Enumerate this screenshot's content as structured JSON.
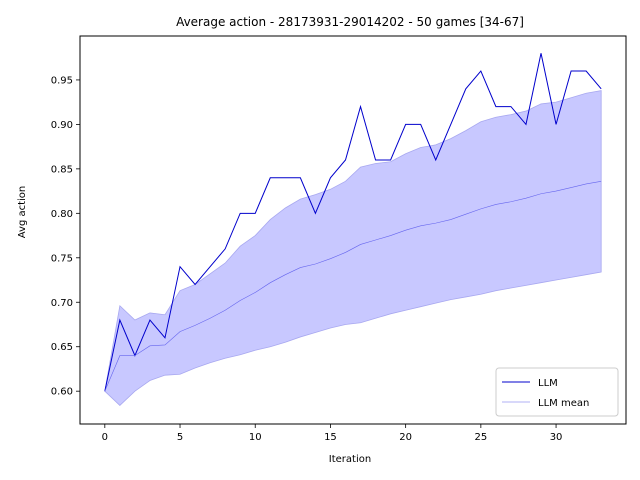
{
  "chart_data": {
    "type": "line",
    "title": "Average action - 28173931-29014202 - 50 games [34-67]",
    "xlabel": "Iteration",
    "ylabel": "Avg action",
    "xlim": [
      -1.65,
      34.65
    ],
    "ylim": [
      0.5631,
      0.9994
    ],
    "xticks": [
      0,
      5,
      10,
      15,
      20,
      25,
      30
    ],
    "xtick_labels": [
      "0",
      "5",
      "10",
      "15",
      "20",
      "25",
      "30"
    ],
    "yticks": [
      0.6,
      0.65,
      0.7,
      0.75,
      0.8,
      0.85,
      0.9,
      0.95
    ],
    "ytick_labels": [
      "0.60",
      "0.65",
      "0.70",
      "0.75",
      "0.80",
      "0.85",
      "0.90",
      "0.95"
    ],
    "grid": false,
    "legend_position": "lower-right",
    "x": [
      0,
      1,
      2,
      3,
      4,
      5,
      6,
      7,
      8,
      9,
      10,
      11,
      12,
      13,
      14,
      15,
      16,
      17,
      18,
      19,
      20,
      21,
      22,
      23,
      24,
      25,
      26,
      27,
      28,
      29,
      30,
      31,
      32,
      33
    ],
    "series": [
      {
        "name": "LLM",
        "color": "#0000cc",
        "values": [
          0.6,
          0.68,
          0.64,
          0.68,
          0.66,
          0.74,
          0.72,
          0.74,
          0.76,
          0.8,
          0.8,
          0.84,
          0.84,
          0.84,
          0.8,
          0.84,
          0.86,
          0.92,
          0.86,
          0.86,
          0.9,
          0.9,
          0.86,
          0.9,
          0.94,
          0.96,
          0.92,
          0.92,
          0.9,
          0.98,
          0.9,
          0.96,
          0.96,
          0.94
        ]
      },
      {
        "name": "LLM mean",
        "color": "#6666ee",
        "values": [
          0.6,
          0.64,
          0.64,
          0.651,
          0.652,
          0.667,
          0.674,
          0.682,
          0.691,
          0.702,
          0.711,
          0.722,
          0.731,
          0.739,
          0.743,
          0.749,
          0.756,
          0.765,
          0.77,
          0.775,
          0.781,
          0.786,
          0.789,
          0.793,
          0.799,
          0.805,
          0.81,
          0.813,
          0.817,
          0.822,
          0.825,
          0.829,
          0.833,
          0.836
        ]
      }
    ],
    "band": {
      "color": "#c8c8ff",
      "upper": [
        0.6,
        0.696,
        0.68,
        0.688,
        0.686,
        0.713,
        0.72,
        0.732,
        0.744,
        0.763,
        0.775,
        0.793,
        0.806,
        0.816,
        0.821,
        0.827,
        0.836,
        0.852,
        0.856,
        0.858,
        0.867,
        0.874,
        0.877,
        0.884,
        0.893,
        0.903,
        0.908,
        0.911,
        0.915,
        0.923,
        0.925,
        0.93,
        0.935,
        0.938
      ],
      "lower": [
        0.6,
        0.584,
        0.6,
        0.612,
        0.618,
        0.619,
        0.626,
        0.632,
        0.637,
        0.641,
        0.646,
        0.65,
        0.655,
        0.661,
        0.666,
        0.671,
        0.675,
        0.677,
        0.682,
        0.687,
        0.691,
        0.695,
        0.699,
        0.703,
        0.706,
        0.709,
        0.713,
        0.716,
        0.719,
        0.722,
        0.725,
        0.728,
        0.731,
        0.734
      ]
    }
  }
}
